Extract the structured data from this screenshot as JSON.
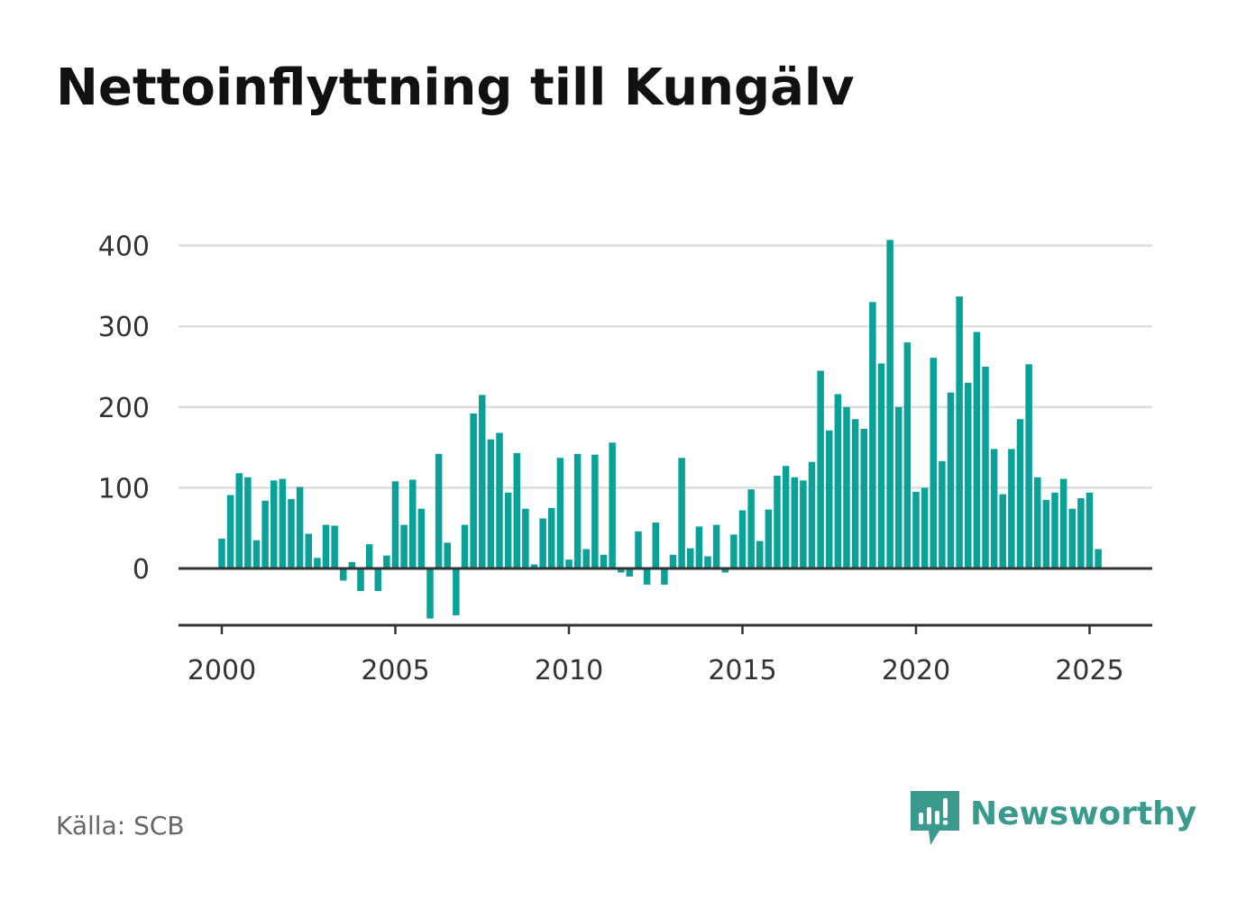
{
  "title": "Nettoinflyttning till Kungälv",
  "source": "Källa: SCB",
  "brand": {
    "name": "Newsworthy",
    "icon": "newsworthy-logo-icon",
    "color": "#3a9a8e"
  },
  "colors": {
    "bar": "#0aa199",
    "grid": "#dddddd",
    "baseline": "#333333",
    "tick_text": "#333333"
  },
  "chart_data": {
    "type": "bar",
    "title": "Nettoinflyttning till Kungälv",
    "xlabel": "",
    "ylabel": "",
    "x_start": 2000,
    "x_step": 0.25,
    "x_ticks": [
      "2000",
      "2005",
      "2010",
      "2015",
      "2020",
      "2025"
    ],
    "y_ticks": [
      "0",
      "100",
      "200",
      "300",
      "400"
    ],
    "ylim": [
      -70,
      400
    ],
    "grid": true,
    "legend": "none",
    "values": [
      37,
      91,
      118,
      113,
      35,
      84,
      109,
      111,
      86,
      101,
      43,
      13,
      54,
      53,
      -15,
      8,
      -28,
      30,
      -28,
      16,
      108,
      54,
      110,
      74,
      -62,
      142,
      32,
      -58,
      54,
      192,
      215,
      160,
      168,
      94,
      143,
      74,
      5,
      62,
      75,
      137,
      11,
      142,
      24,
      141,
      17,
      156,
      -5,
      -10,
      46,
      -20,
      57,
      -20,
      17,
      137,
      25,
      52,
      15,
      54,
      -5,
      42,
      72,
      98,
      34,
      73,
      115,
      127,
      113,
      109,
      132,
      245,
      171,
      216,
      200,
      185,
      173,
      330,
      254,
      407,
      200,
      280,
      95,
      100,
      261,
      133,
      218,
      337,
      230,
      293,
      250,
      148,
      92,
      148,
      185,
      253,
      113,
      85,
      94,
      111,
      74,
      87,
      94,
      24
    ]
  }
}
